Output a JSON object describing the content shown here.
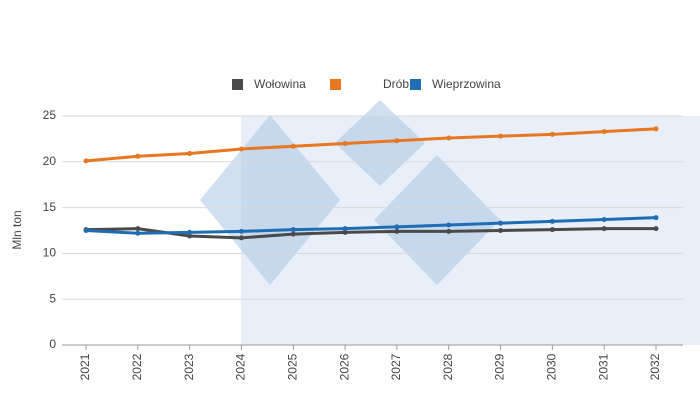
{
  "chart_data": {
    "type": "line",
    "y_label": "Mln ton",
    "categories": [
      "2021",
      "2022",
      "2023",
      "2024",
      "2025",
      "2026",
      "2027",
      "2028",
      "2029",
      "2030",
      "2031",
      "2032"
    ],
    "series": [
      {
        "name": "Wołowina",
        "color": "#4a4a4a",
        "values": [
          12.6,
          12.7,
          11.9,
          11.7,
          12.1,
          12.3,
          12.4,
          12.4,
          12.5,
          12.6,
          12.7,
          12.7
        ]
      },
      {
        "name": "Drób",
        "color": "#e87722",
        "values": [
          20.1,
          20.6,
          20.9,
          21.4,
          21.7,
          22.0,
          22.3,
          22.6,
          22.8,
          23.0,
          23.3,
          23.6
        ]
      },
      {
        "name": "Wieprzowina",
        "color": "#1f6db5",
        "values": [
          12.5,
          12.2,
          12.3,
          12.4,
          12.6,
          12.7,
          12.9,
          13.1,
          13.3,
          13.5,
          13.7,
          13.9
        ]
      }
    ],
    "ylim": [
      0,
      25
    ],
    "yticks": [
      0,
      5,
      10,
      15,
      20,
      25
    ],
    "grid": true
  }
}
